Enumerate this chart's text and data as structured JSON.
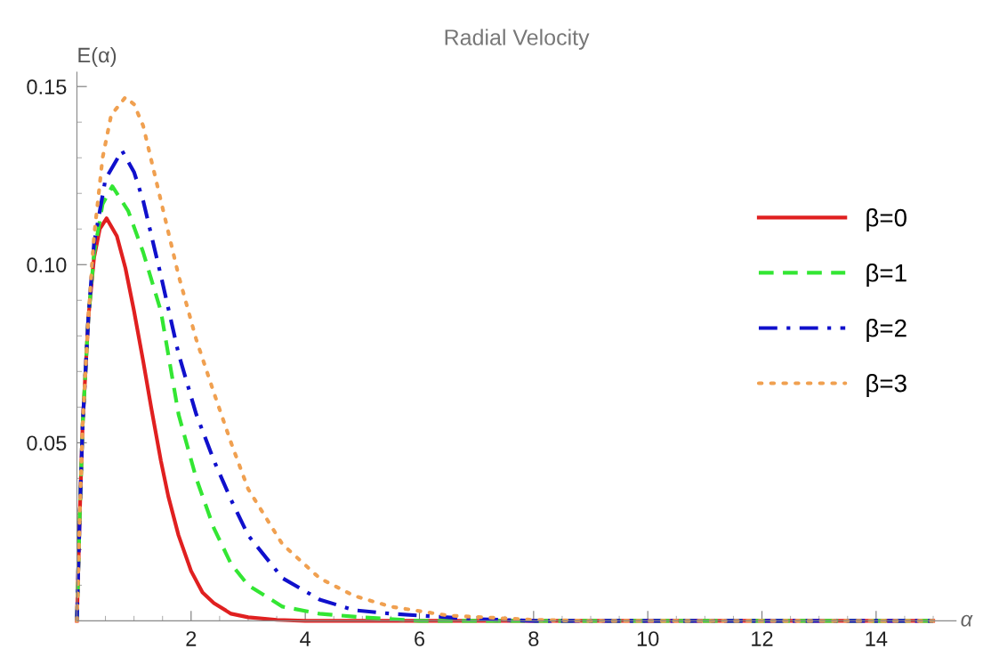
{
  "chart_data": {
    "type": "line",
    "title": "Radial Velocity",
    "xlabel": "α",
    "ylabel": "E(α)",
    "xlim": [
      0,
      15.4
    ],
    "ylim": [
      0,
      0.154
    ],
    "xticks": [
      2,
      4,
      6,
      8,
      10,
      12,
      14
    ],
    "yticks": [
      0.05,
      {
        "value": 0.1,
        "label": "0.10"
      },
      0.15
    ],
    "grid": false,
    "legend": "right",
    "marker": "none",
    "series": [
      {
        "name": "β=0",
        "color": "#e02020",
        "line_style": "solid",
        "x": [
          0,
          0.05,
          0.1,
          0.2,
          0.3,
          0.4,
          0.52,
          0.7,
          0.85,
          1.0,
          1.16,
          1.3,
          1.47,
          1.6,
          1.78,
          2.0,
          2.2,
          2.4,
          2.7,
          3.0,
          3.5,
          4.0,
          15
        ],
        "values": [
          0,
          0.03,
          0.055,
          0.085,
          0.102,
          0.11,
          0.113,
          0.108,
          0.099,
          0.087,
          0.073,
          0.06,
          0.045,
          0.035,
          0.024,
          0.014,
          0.008,
          0.005,
          0.002,
          0.001,
          0.0003,
          0,
          0
        ]
      },
      {
        "name": "β=1",
        "color": "#33e633",
        "line_style": "dashed",
        "x": [
          0,
          0.05,
          0.1,
          0.2,
          0.3,
          0.45,
          0.62,
          0.9,
          1.16,
          1.47,
          1.78,
          2.09,
          2.4,
          2.7,
          3.0,
          3.6,
          4.25,
          5.0,
          6.0,
          15
        ],
        "values": [
          0,
          0.03,
          0.055,
          0.085,
          0.103,
          0.117,
          0.122,
          0.115,
          0.1035,
          0.087,
          0.058,
          0.04,
          0.026,
          0.016,
          0.01,
          0.004,
          0.002,
          0.001,
          0,
          0
        ]
      },
      {
        "name": "β=2",
        "color": "#1010cc",
        "line_style": "dashdot",
        "x": [
          0,
          0.05,
          0.1,
          0.2,
          0.3,
          0.5,
          0.79,
          1.0,
          1.16,
          1.47,
          1.78,
          2.09,
          2.4,
          2.7,
          3.0,
          3.6,
          4.25,
          4.86,
          5.5,
          7.0,
          8.0,
          15
        ],
        "values": [
          0,
          0.03,
          0.055,
          0.085,
          0.106,
          0.124,
          0.132,
          0.126,
          0.118,
          0.097,
          0.075,
          0.058,
          0.045,
          0.034,
          0.024,
          0.012,
          0.006,
          0.003,
          0.002,
          0.0005,
          0,
          0
        ]
      },
      {
        "name": "β=3",
        "color": "#f0a050",
        "line_style": "dotted",
        "x": [
          0,
          0.05,
          0.1,
          0.2,
          0.3,
          0.45,
          0.6,
          0.85,
          1.0,
          1.16,
          1.47,
          1.78,
          2.09,
          2.4,
          2.7,
          3.0,
          3.6,
          4.25,
          4.86,
          5.5,
          6.5,
          8.0,
          9.0,
          15
        ],
        "values": [
          0,
          0.03,
          0.055,
          0.085,
          0.108,
          0.13,
          0.142,
          0.147,
          0.145,
          0.139,
          0.118,
          0.097,
          0.079,
          0.064,
          0.05,
          0.037,
          0.0215,
          0.012,
          0.007,
          0.004,
          0.0015,
          0.0003,
          0,
          0
        ]
      }
    ]
  }
}
